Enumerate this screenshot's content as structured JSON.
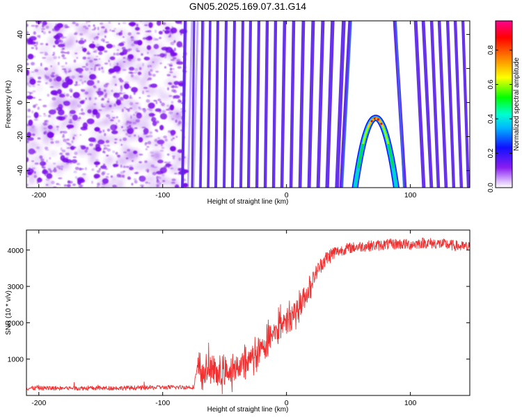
{
  "title": "GN05.2025.169.07.31.G14",
  "chart_data": [
    {
      "type": "heatmap",
      "title": "GN05.2025.169.07.31.G14",
      "xlabel": "Height of straight line (km)",
      "ylabel": "Frequency (Hz)",
      "xlim": [
        -210,
        148
      ],
      "ylim": [
        -50,
        48
      ],
      "x_ticks": [
        -200,
        -100,
        0,
        100
      ],
      "y_ticks": [
        -40,
        -20,
        0,
        20,
        40
      ],
      "colorbar": {
        "label": "Normalized spectral amplitude",
        "range": [
          0,
          0.97
        ],
        "ticks": [
          0.0,
          0.2,
          0.4,
          0.6,
          0.8
        ],
        "colormap": [
          "#ffffff",
          "#8a1df0",
          "#1010ff",
          "#00d8ff",
          "#00ff00",
          "#ffff00",
          "#ff8000",
          "#ff0000",
          "#ff0090"
        ]
      },
      "noise_region": {
        "x_from": -210,
        "x_to": -85,
        "color": "#8a2be2"
      },
      "fringe_color": "#5a22e8",
      "peak": {
        "x": 72,
        "y": -9,
        "half_width_km": 17,
        "value": 0.9
      }
    },
    {
      "type": "line",
      "xlabel": "Height of straight line (km)",
      "ylabel": "SNR (10 * v/v)",
      "xlim": [
        -210,
        148
      ],
      "ylim": [
        0,
        4550
      ],
      "x_ticks": [
        -200,
        -100,
        0,
        100
      ],
      "y_ticks": [
        1000,
        2000,
        3000,
        4000
      ],
      "grid": false,
      "series": [
        {
          "color": "#f03030",
          "x": [
            -210,
            -150,
            -100,
            -75,
            -72,
            -65,
            -60,
            -55,
            -50,
            -45,
            -40,
            -35,
            -30,
            -25,
            -20,
            -15,
            -10,
            -5,
            0,
            5,
            10,
            15,
            20,
            25,
            30,
            35,
            40,
            45,
            50,
            60,
            70,
            80,
            90,
            100,
            110,
            120,
            130,
            140,
            148
          ],
          "values": [
            200,
            200,
            220,
            230,
            800,
            600,
            750,
            500,
            700,
            650,
            750,
            900,
            1000,
            1150,
            1300,
            1550,
            1750,
            1900,
            2050,
            2250,
            2450,
            2700,
            3100,
            3450,
            3700,
            3850,
            3950,
            4000,
            4050,
            4100,
            4120,
            4150,
            4170,
            4150,
            4200,
            4180,
            4150,
            4100,
            4080
          ]
        }
      ]
    }
  ]
}
